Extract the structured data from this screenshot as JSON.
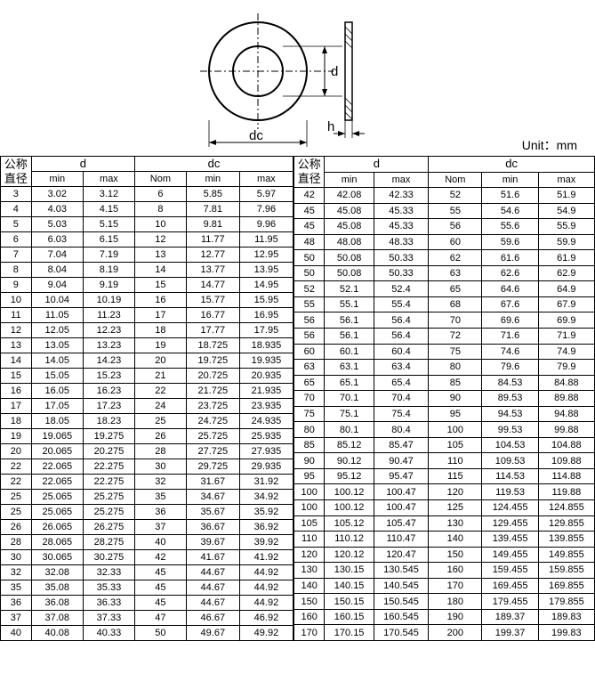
{
  "unit_label": "Unit：mm",
  "diagram": {
    "labels": {
      "d": "d",
      "dc": "dc",
      "h": "h"
    }
  },
  "headers": {
    "nominal": "公称\n直径",
    "d": "d",
    "dc": "dc",
    "min": "min",
    "max": "max",
    "Nom": "Nom"
  },
  "table1": [
    [
      "3",
      "3.02",
      "3.12",
      "6",
      "5.85",
      "5.97"
    ],
    [
      "4",
      "4.03",
      "4.15",
      "8",
      "7.81",
      "7.96"
    ],
    [
      "5",
      "5.03",
      "5.15",
      "10",
      "9.81",
      "9.96"
    ],
    [
      "6",
      "6.03",
      "6.15",
      "12",
      "11.77",
      "11.95"
    ],
    [
      "7",
      "7.04",
      "7.19",
      "13",
      "12.77",
      "12.95"
    ],
    [
      "8",
      "8.04",
      "8.19",
      "14",
      "13.77",
      "13.95"
    ],
    [
      "9",
      "9.04",
      "9.19",
      "15",
      "14.77",
      "14.95"
    ],
    [
      "10",
      "10.04",
      "10.19",
      "16",
      "15.77",
      "15.95"
    ],
    [
      "11",
      "11.05",
      "11.23",
      "17",
      "16.77",
      "16.95"
    ],
    [
      "12",
      "12.05",
      "12.23",
      "18",
      "17.77",
      "17.95"
    ],
    [
      "13",
      "13.05",
      "13.23",
      "19",
      "18.725",
      "18.935"
    ],
    [
      "14",
      "14.05",
      "14.23",
      "20",
      "19.725",
      "19.935"
    ],
    [
      "15",
      "15.05",
      "15.23",
      "21",
      "20.725",
      "20.935"
    ],
    [
      "16",
      "16.05",
      "16.23",
      "22",
      "21.725",
      "21.935"
    ],
    [
      "17",
      "17.05",
      "17.23",
      "24",
      "23.725",
      "23.935"
    ],
    [
      "18",
      "18.05",
      "18.23",
      "25",
      "24.725",
      "24.935"
    ],
    [
      "19",
      "19.065",
      "19.275",
      "26",
      "25.725",
      "25.935"
    ],
    [
      "20",
      "20.065",
      "20.275",
      "28",
      "27.725",
      "27.935"
    ],
    [
      "22",
      "22.065",
      "22.275",
      "30",
      "29.725",
      "29.935"
    ],
    [
      "22",
      "22.065",
      "22.275",
      "32",
      "31.67",
      "31.92"
    ],
    [
      "25",
      "25.065",
      "25.275",
      "35",
      "34.67",
      "34.92"
    ],
    [
      "25",
      "25.065",
      "25.275",
      "36",
      "35.67",
      "35.92"
    ],
    [
      "26",
      "26.065",
      "26.275",
      "37",
      "36.67",
      "36.92"
    ],
    [
      "28",
      "28.065",
      "28.275",
      "40",
      "39.67",
      "39.92"
    ],
    [
      "30",
      "30.065",
      "30.275",
      "42",
      "41.67",
      "41.92"
    ],
    [
      "32",
      "32.08",
      "32.33",
      "45",
      "44.67",
      "44.92"
    ],
    [
      "35",
      "35.08",
      "35.33",
      "45",
      "44.67",
      "44.92"
    ],
    [
      "36",
      "36.08",
      "36.33",
      "45",
      "44.67",
      "44.92"
    ],
    [
      "37",
      "37.08",
      "37.33",
      "47",
      "46.67",
      "46.92"
    ],
    [
      "40",
      "40.08",
      "40.33",
      "50",
      "49.67",
      "49.92"
    ]
  ],
  "table2": [
    [
      "42",
      "42.08",
      "42.33",
      "52",
      "51.6",
      "51.9"
    ],
    [
      "45",
      "45.08",
      "45.33",
      "55",
      "54.6",
      "54.9"
    ],
    [
      "45",
      "45.08",
      "45.33",
      "56",
      "55.6",
      "55.9"
    ],
    [
      "48",
      "48.08",
      "48.33",
      "60",
      "59.6",
      "59.9"
    ],
    [
      "50",
      "50.08",
      "50.33",
      "62",
      "61.6",
      "61.9"
    ],
    [
      "50",
      "50.08",
      "50.33",
      "63",
      "62.6",
      "62.9"
    ],
    [
      "52",
      "52.1",
      "52.4",
      "65",
      "64.6",
      "64.9"
    ],
    [
      "55",
      "55.1",
      "55.4",
      "68",
      "67.6",
      "67.9"
    ],
    [
      "56",
      "56.1",
      "56.4",
      "70",
      "69.6",
      "69.9"
    ],
    [
      "56",
      "56.1",
      "56.4",
      "72",
      "71.6",
      "71.9"
    ],
    [
      "60",
      "60.1",
      "60.4",
      "75",
      "74.6",
      "74.9"
    ],
    [
      "63",
      "63.1",
      "63.4",
      "80",
      "79.6",
      "79.9"
    ],
    [
      "65",
      "65.1",
      "65.4",
      "85",
      "84.53",
      "84.88"
    ],
    [
      "70",
      "70.1",
      "70.4",
      "90",
      "89.53",
      "89.88"
    ],
    [
      "75",
      "75.1",
      "75.4",
      "95",
      "94.53",
      "94.88"
    ],
    [
      "80",
      "80.1",
      "80.4",
      "100",
      "99.53",
      "99.88"
    ],
    [
      "85",
      "85.12",
      "85.47",
      "105",
      "104.53",
      "104.88"
    ],
    [
      "90",
      "90.12",
      "90.47",
      "110",
      "109.53",
      "109.88"
    ],
    [
      "95",
      "95.12",
      "95.47",
      "115",
      "114.53",
      "114.88"
    ],
    [
      "100",
      "100.12",
      "100.47",
      "120",
      "119.53",
      "119.88"
    ],
    [
      "100",
      "100.12",
      "100.47",
      "125",
      "124.455",
      "124.855"
    ],
    [
      "105",
      "105.12",
      "105.47",
      "130",
      "129.455",
      "129.855"
    ],
    [
      "110",
      "110.12",
      "110.47",
      "140",
      "139.455",
      "139.855"
    ],
    [
      "120",
      "120.12",
      "120.47",
      "150",
      "149.455",
      "149.855"
    ],
    [
      "130",
      "130.15",
      "130.545",
      "160",
      "159.455",
      "159.855"
    ],
    [
      "140",
      "140.15",
      "140.545",
      "170",
      "169.455",
      "169.855"
    ],
    [
      "150",
      "150.15",
      "150.545",
      "180",
      "179.455",
      "179.855"
    ],
    [
      "160",
      "160.15",
      "160.545",
      "190",
      "189.37",
      "189.83"
    ],
    [
      "170",
      "170.15",
      "170.545",
      "200",
      "199.37",
      "199.83"
    ]
  ]
}
